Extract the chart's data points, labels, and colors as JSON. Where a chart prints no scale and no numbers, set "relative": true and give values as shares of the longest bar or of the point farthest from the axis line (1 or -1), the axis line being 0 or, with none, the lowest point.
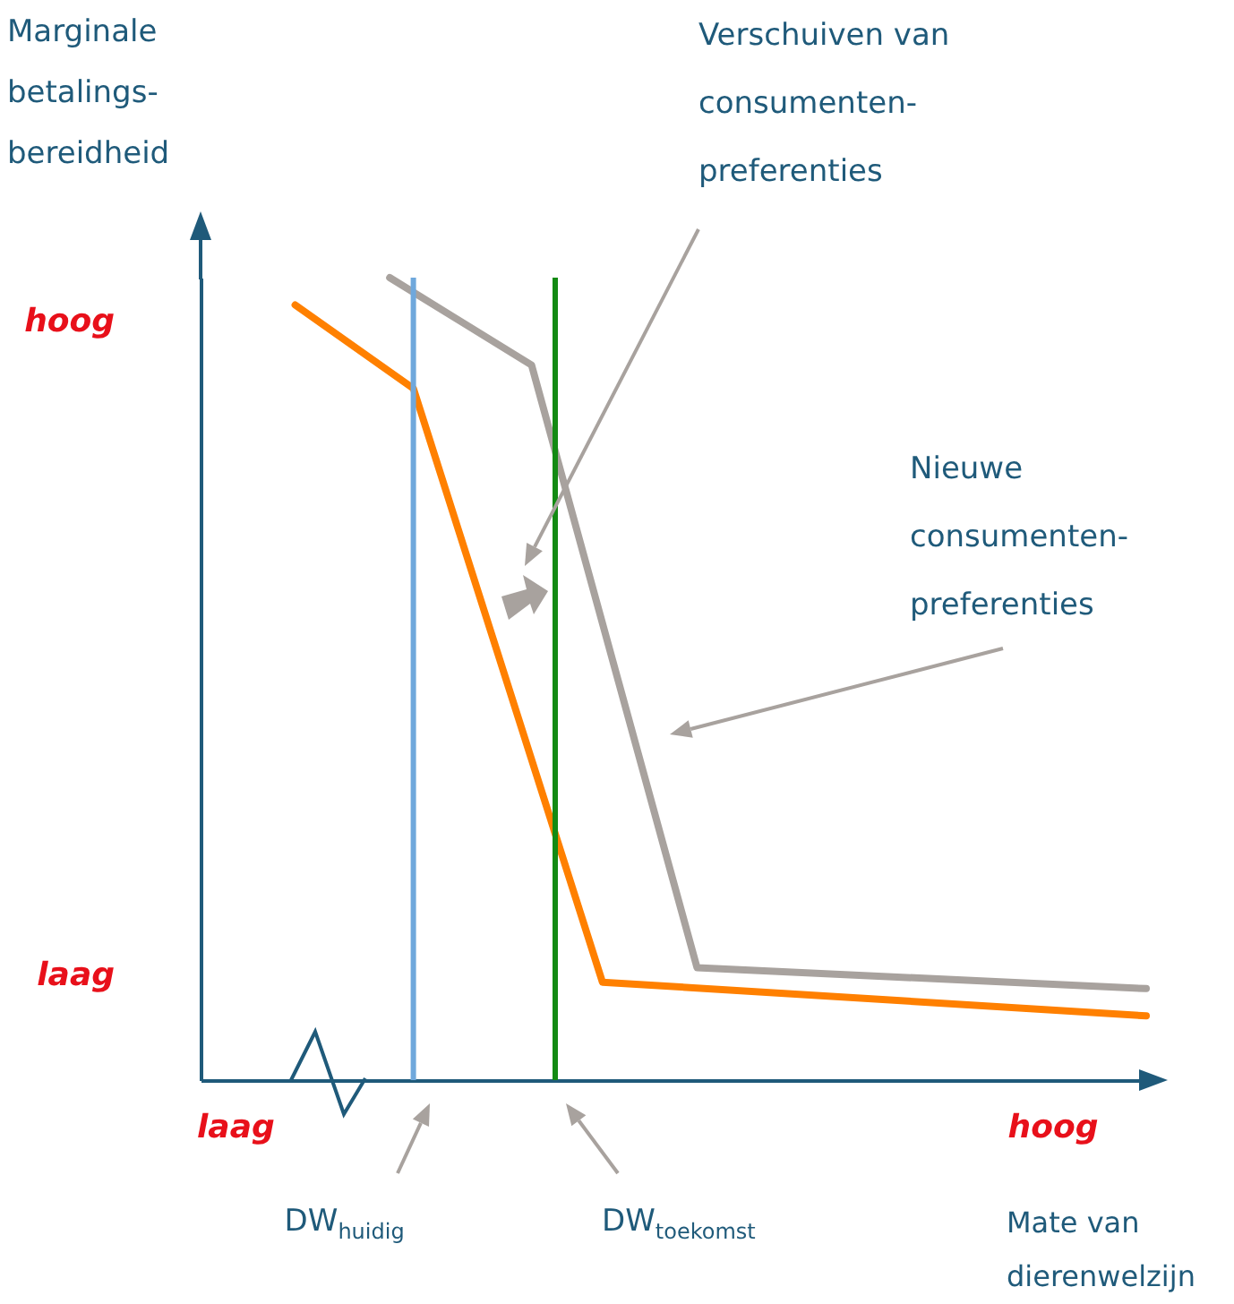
{
  "chart_data": {
    "type": "line",
    "xlabel": "Mate van dierenwelzijn",
    "ylabel": "Marginale betalings-bereidheid",
    "relative": true,
    "categories": [
      null,
      null,
      null,
      null,
      null,
      null,
      null,
      null,
      null,
      null,
      null,
      null,
      null,
      null,
      null,
      null,
      null,
      null,
      null,
      null,
      null,
      null,
      null,
      null,
      null,
      null,
      null,
      null,
      null,
      null,
      null,
      null,
      null,
      null,
      null,
      null,
      null,
      null,
      null,
      null,
      null
    ],
    "grid": false,
    "series": [
      {
        "color": "#ff8000",
        "values": [
          null,
          null,
          null,
          null,
          0.966,
          null,
          null,
          null,
          null,
          0.862,
          null,
          null,
          null,
          null,
          null,
          null,
          null,
          0.122,
          null,
          null,
          null,
          null,
          null,
          null,
          null,
          null,
          null,
          null,
          null,
          null,
          null,
          null,
          null,
          null,
          null,
          null,
          null,
          null,
          null,
          null,
          0.08
        ]
      },
      {
        "color": "#a8a29e",
        "values": [
          null,
          null,
          null,
          null,
          null,
          null,
          null,
          null,
          1,
          null,
          null,
          null,
          null,
          null,
          0.891,
          null,
          null,
          null,
          null,
          null,
          null,
          0.14,
          null,
          null,
          null,
          null,
          null,
          null,
          null,
          null,
          null,
          null,
          null,
          null,
          null,
          null,
          null,
          null,
          null,
          null,
          0.114
        ]
      }
    ],
    "annotations": [
      "Verschuiven van consumenten-preferenties",
      "Nieuwe consumenten-preferenties",
      "hoog",
      "laag",
      "laag",
      "hoog",
      "DW$_{huidig}$",
      "DW$_{toekomst}$"
    ]
  }
}
